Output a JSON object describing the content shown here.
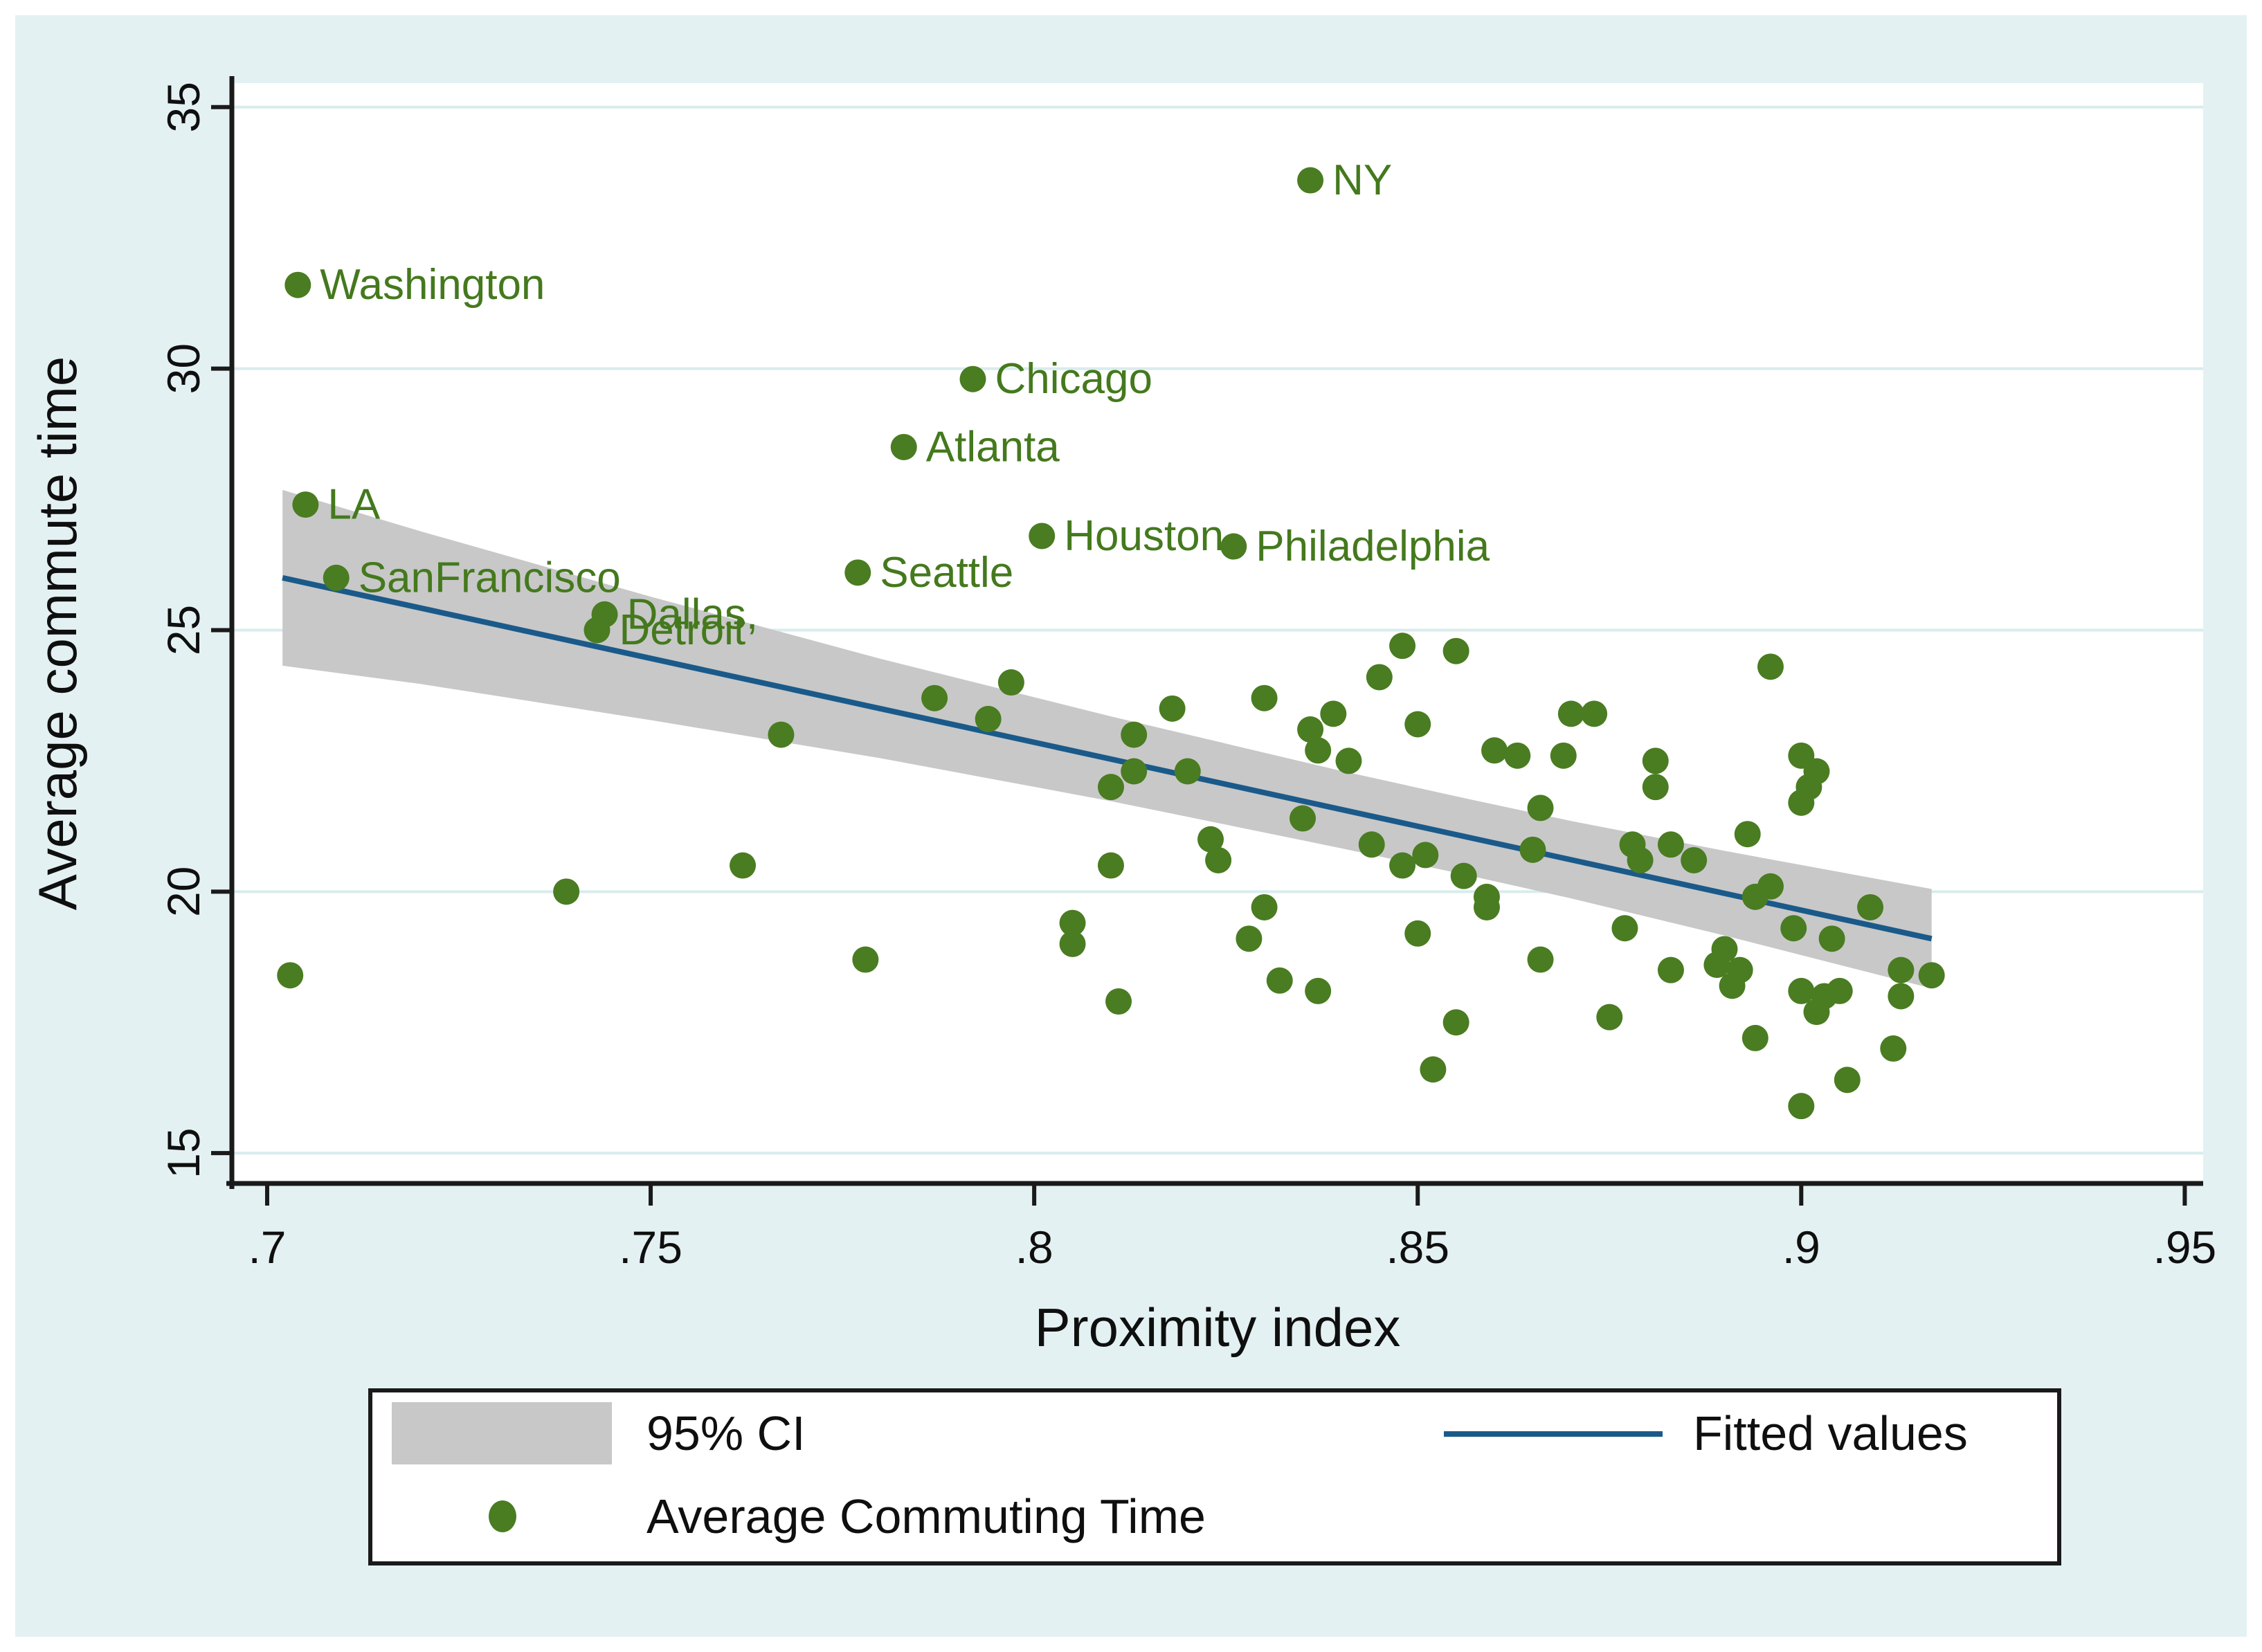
{
  "figure": {
    "background_color": "#e4f1f2",
    "plot_background_color": "#ffffff"
  },
  "colors": {
    "marker_green": "#4a7c21",
    "label_green": "#44791d",
    "fit_line_navy": "#1a5a8a",
    "ci_band_gray": "#c8c8c8",
    "gridline": "#d9ecee",
    "axis_black": "#1a1a1a",
    "text_black": "#0f0f0f"
  },
  "legend": {
    "ci_label": "95% CI",
    "scatter_label": "Average Commuting Time",
    "fit_label": "Fitted values"
  },
  "chart_data": {
    "type": "scatter",
    "title": "",
    "xlabel": "Proximity index",
    "ylabel": "Average commute time",
    "xlim": [
      0.6954,
      0.9524
    ],
    "ylim": [
      14.42,
      35.46
    ],
    "grid": "horizontal-only",
    "legend_position": "bottom-box",
    "xticks": {
      "values": [
        0.7,
        0.75,
        0.8,
        0.85,
        0.9,
        0.95
      ],
      "labels": [
        ".7",
        ".75",
        ".8",
        ".85",
        ".9",
        ".95"
      ]
    },
    "yticks": {
      "values": [
        15,
        20,
        25,
        30,
        35
      ],
      "labels": [
        "15",
        "20",
        "25",
        "30",
        "35"
      ]
    },
    "series": [
      {
        "name": "Average Commuting Time",
        "marker": "filled-circle",
        "color": "#4a7c21",
        "labeled_points": [
          {
            "label": "NY",
            "x": 0.836,
            "y": 33.6
          },
          {
            "label": "Washington",
            "x": 0.704,
            "y": 31.6
          },
          {
            "label": "Chicago",
            "x": 0.792,
            "y": 29.8
          },
          {
            "label": "Atlanta",
            "x": 0.783,
            "y": 28.5
          },
          {
            "label": "LA",
            "x": 0.705,
            "y": 27.4
          },
          {
            "label": "Houston",
            "x": 0.801,
            "y": 26.8
          },
          {
            "label": "Philadelphia",
            "x": 0.826,
            "y": 26.6
          },
          {
            "label": "SanFrancisco",
            "x": 0.709,
            "y": 26.0
          },
          {
            "label": "Seattle",
            "x": 0.777,
            "y": 26.1
          },
          {
            "label": "Dallas,",
            "x": 0.744,
            "y": 25.3
          },
          {
            "label": "Detroit",
            "x": 0.743,
            "y": 25.0
          }
        ],
        "points": [
          [
            0.703,
            18.4
          ],
          [
            0.739,
            20.0
          ],
          [
            0.762,
            20.5
          ],
          [
            0.767,
            23.0
          ],
          [
            0.778,
            18.7
          ],
          [
            0.787,
            23.7
          ],
          [
            0.794,
            23.3
          ],
          [
            0.797,
            24.0
          ],
          [
            0.805,
            19.4
          ],
          [
            0.805,
            19.0
          ],
          [
            0.81,
            20.5
          ],
          [
            0.811,
            17.9
          ],
          [
            0.81,
            22.0
          ],
          [
            0.813,
            22.3
          ],
          [
            0.813,
            23.0
          ],
          [
            0.818,
            23.5
          ],
          [
            0.82,
            22.3
          ],
          [
            0.823,
            21.0
          ],
          [
            0.824,
            20.6
          ],
          [
            0.828,
            19.1
          ],
          [
            0.83,
            19.7
          ],
          [
            0.83,
            23.7
          ],
          [
            0.832,
            18.3
          ],
          [
            0.835,
            21.4
          ],
          [
            0.836,
            23.1
          ],
          [
            0.837,
            22.7
          ],
          [
            0.839,
            23.4
          ],
          [
            0.837,
            18.1
          ],
          [
            0.841,
            22.5
          ],
          [
            0.845,
            24.1
          ],
          [
            0.848,
            24.7
          ],
          [
            0.844,
            20.9
          ],
          [
            0.848,
            20.5
          ],
          [
            0.851,
            20.7
          ],
          [
            0.85,
            23.2
          ],
          [
            0.85,
            19.2
          ],
          [
            0.852,
            16.6
          ],
          [
            0.855,
            24.6
          ],
          [
            0.856,
            20.3
          ],
          [
            0.859,
            19.9
          ],
          [
            0.859,
            19.7
          ],
          [
            0.855,
            17.5
          ],
          [
            0.86,
            22.7
          ],
          [
            0.863,
            22.6
          ],
          [
            0.865,
            20.8
          ],
          [
            0.866,
            21.6
          ],
          [
            0.866,
            18.7
          ],
          [
            0.869,
            22.6
          ],
          [
            0.87,
            23.4
          ],
          [
            0.873,
            23.4
          ],
          [
            0.875,
            17.6
          ],
          [
            0.877,
            19.3
          ],
          [
            0.878,
            20.9
          ],
          [
            0.879,
            20.6
          ],
          [
            0.881,
            22.5
          ],
          [
            0.881,
            22.0
          ],
          [
            0.883,
            20.9
          ],
          [
            0.886,
            20.6
          ],
          [
            0.883,
            18.5
          ],
          [
            0.889,
            18.6
          ],
          [
            0.89,
            18.9
          ],
          [
            0.891,
            18.2
          ],
          [
            0.892,
            18.5
          ],
          [
            0.893,
            21.1
          ],
          [
            0.894,
            19.9
          ],
          [
            0.896,
            20.1
          ],
          [
            0.894,
            17.2
          ],
          [
            0.896,
            24.3
          ],
          [
            0.899,
            19.3
          ],
          [
            0.9,
            22.6
          ],
          [
            0.902,
            22.3
          ],
          [
            0.901,
            22.0
          ],
          [
            0.9,
            21.7
          ],
          [
            0.9,
            18.1
          ],
          [
            0.903,
            18.0
          ],
          [
            0.905,
            18.1
          ],
          [
            0.902,
            17.7
          ],
          [
            0.904,
            19.1
          ],
          [
            0.906,
            16.4
          ],
          [
            0.9,
            15.9
          ],
          [
            0.909,
            19.7
          ],
          [
            0.912,
            17.0
          ],
          [
            0.913,
            18.5
          ],
          [
            0.917,
            18.4
          ],
          [
            0.913,
            18.0
          ]
        ]
      }
    ],
    "fit_line": {
      "name": "Fitted values",
      "color": "#1a5a8a",
      "x1": 0.702,
      "y1": 26.0,
      "x2": 0.917,
      "y2": 19.1
    },
    "ci_band": {
      "name": "95% CI",
      "color": "#c8c8c8",
      "stations": [
        {
          "x": 0.702,
          "lo": 24.32,
          "hi": 27.68
        },
        {
          "x": 0.72,
          "lo": 23.97,
          "hi": 26.89
        },
        {
          "x": 0.75,
          "lo": 23.28,
          "hi": 25.64
        },
        {
          "x": 0.78,
          "lo": 22.55,
          "hi": 24.45
        },
        {
          "x": 0.81,
          "lo": 21.73,
          "hi": 23.35
        },
        {
          "x": 0.84,
          "lo": 20.83,
          "hi": 22.31
        },
        {
          "x": 0.856,
          "lo": 20.33,
          "hi": 21.79
        },
        {
          "x": 0.87,
          "lo": 19.87,
          "hi": 21.35
        },
        {
          "x": 0.89,
          "lo": 19.16,
          "hi": 20.78
        },
        {
          "x": 0.917,
          "lo": 18.15,
          "hi": 20.05
        }
      ]
    }
  }
}
